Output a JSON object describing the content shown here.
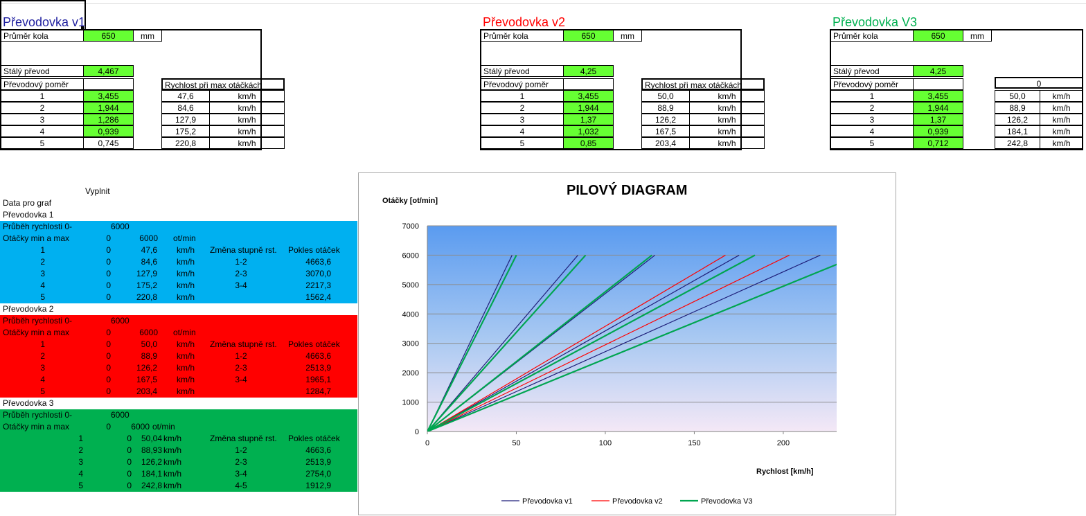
{
  "colors": {
    "v1": "#1f1f7a",
    "v2": "#ff0000",
    "v3": "#00a550",
    "input_cell": "#66ff33",
    "band_v1": "#00b0f0",
    "band_v2": "#ff0000",
    "band_v3": "#00b050"
  },
  "gearboxes": [
    {
      "title": "Převodovka v1",
      "title_color": "#1f1f9f",
      "wheel_label": "Průměr kola",
      "wheel_value": "650",
      "wheel_unit": "mm",
      "final_label": "Stálý převod",
      "final_value": "4,467",
      "ratio_label": "Převodový poměr",
      "speed_header": "Rychlost při max otáčkách",
      "rows": [
        {
          "gear": "1",
          "ratio": "3,455",
          "speed": "47,6",
          "unit": "km/h"
        },
        {
          "gear": "2",
          "ratio": "1,944",
          "speed": "84,6",
          "unit": "km/h"
        },
        {
          "gear": "3",
          "ratio": "1,286",
          "speed": "127,9",
          "unit": "km/h"
        },
        {
          "gear": "4",
          "ratio": "0,939",
          "speed": "175,2",
          "unit": "km/h"
        },
        {
          "gear": "5",
          "ratio": "0,745",
          "speed": "220,8",
          "unit": "km/h"
        }
      ]
    },
    {
      "title": "Převodovka v2",
      "title_color": "#ff0000",
      "wheel_label": "Průměr kola",
      "wheel_value": "650",
      "wheel_unit": "mm",
      "final_label": "Stálý převod",
      "final_value": "4,25",
      "ratio_label": "Převodový poměr",
      "speed_header": "Rychlost při max otáčkách",
      "rows": [
        {
          "gear": "1",
          "ratio": "3,455",
          "speed": "50,0",
          "unit": "km/h"
        },
        {
          "gear": "2",
          "ratio": "1,944",
          "speed": "88,9",
          "unit": "km/h"
        },
        {
          "gear": "3",
          "ratio": "1,37",
          "speed": "126,2",
          "unit": "km/h"
        },
        {
          "gear": "4",
          "ratio": "1,032",
          "speed": "167,5",
          "unit": "km/h"
        },
        {
          "gear": "5",
          "ratio": "0,85",
          "speed": "203,4",
          "unit": "km/h"
        }
      ]
    },
    {
      "title": "Převodovka V3",
      "title_color": "#00b050",
      "wheel_label": "Průměr kola",
      "wheel_value": "650",
      "wheel_unit": "mm",
      "final_label": "Stálý převod",
      "final_value": "4,25",
      "ratio_label": "Převodový poměr",
      "speed_header": "0",
      "rows": [
        {
          "gear": "1",
          "ratio": "3,455",
          "speed": "50,0",
          "unit": "km/h"
        },
        {
          "gear": "2",
          "ratio": "1,944",
          "speed": "88,9",
          "unit": "km/h"
        },
        {
          "gear": "3",
          "ratio": "1,37",
          "speed": "126,2",
          "unit": "km/h"
        },
        {
          "gear": "4",
          "ratio": "0,939",
          "speed": "184,1",
          "unit": "km/h"
        },
        {
          "gear": "5",
          "ratio": "0,712",
          "speed": "242,8",
          "unit": "km/h"
        }
      ]
    }
  ],
  "graph_data": {
    "fill_label": "Vyplnit",
    "data_label": "Data pro graf",
    "blocks": [
      {
        "name": "Převodovka 1",
        "speed_label": "Průběh rychlosti 0-",
        "speed_max": "6000",
        "rpm_label": "Otáčky min a max",
        "rpm_min": "0",
        "rpm_max": "6000",
        "rpm_unit": "ot/min",
        "change_header": "Změna stupně rst.",
        "drop_header": "Pokles otáček",
        "rows": [
          {
            "gear": "1",
            "min": "0",
            "speed": "47,6",
            "unit": "km/h",
            "change": "1-2",
            "drop": ""
          },
          {
            "gear": "2",
            "min": "0",
            "speed": "84,6",
            "unit": "km/h",
            "change": "2-3",
            "drop": "4663,6"
          },
          {
            "gear": "3",
            "min": "0",
            "speed": "127,9",
            "unit": "km/h",
            "change": "3-4",
            "drop": "3070,0"
          },
          {
            "gear": "4",
            "min": "0",
            "speed": "175,2",
            "unit": "km/h",
            "change": "",
            "drop": "2217,3"
          },
          {
            "gear": "5",
            "min": "0",
            "speed": "220,8",
            "unit": "km/h",
            "change": "",
            "drop": "1562,4"
          }
        ]
      },
      {
        "name": "Převodovka 2",
        "speed_label": "Průběh rychlosti 0-",
        "speed_max": "6000",
        "rpm_label": "Otáčky min a max",
        "rpm_min": "0",
        "rpm_max": "6000",
        "rpm_unit": "ot/min",
        "change_header": "Změna stupně rst.",
        "drop_header": "Pokles otáček",
        "rows": [
          {
            "gear": "1",
            "min": "0",
            "speed": "50,0",
            "unit": "km/h",
            "change": "",
            "drop": ""
          },
          {
            "gear": "2",
            "min": "0",
            "speed": "88,9",
            "unit": "km/h",
            "change": "1-2",
            "drop": "4663,6"
          },
          {
            "gear": "3",
            "min": "0",
            "speed": "126,2",
            "unit": "km/h",
            "change": "2-3",
            "drop": "2513,9"
          },
          {
            "gear": "4",
            "min": "0",
            "speed": "167,5",
            "unit": "km/h",
            "change": "3-4",
            "drop": "1965,1"
          },
          {
            "gear": "5",
            "min": "0",
            "speed": "203,4",
            "unit": "km/h",
            "change": "",
            "drop": "1284,7"
          }
        ]
      },
      {
        "name": "Převodovka 3",
        "speed_label": "Průběh rychlosti 0-",
        "speed_max": "6000",
        "rpm_label": "Otáčky min a max",
        "rpm_min": "0",
        "rpm_max": "6000",
        "rpm_unit": "ot/min",
        "change_header": "Změna stupně rst.",
        "drop_header": "Pokles otáček",
        "rows": [
          {
            "gear": "1",
            "min": "0",
            "speed": "50,04",
            "unit": "km/h",
            "change": "",
            "drop": ""
          },
          {
            "gear": "2",
            "min": "0",
            "speed": "88,93",
            "unit": "km/h",
            "change": "1-2",
            "drop": "4663,6"
          },
          {
            "gear": "3",
            "min": "0",
            "speed": "126,2",
            "unit": "km/h",
            "change": "2-3",
            "drop": "2513,9"
          },
          {
            "gear": "4",
            "min": "0",
            "speed": "184,1",
            "unit": "km/h",
            "change": "3-4",
            "drop": "2754,0"
          },
          {
            "gear": "5",
            "min": "0",
            "speed": "242,8",
            "unit": "km/h",
            "change": "4-5",
            "drop": "1912,9"
          }
        ]
      }
    ]
  },
  "chart_data": {
    "type": "line",
    "title": "PILOVÝ DIAGRAM",
    "xlabel": "Rychlost  [km/h]",
    "ylabel": "Otáčky  [ot/min]",
    "xlim": [
      0,
      230
    ],
    "ylim": [
      0,
      7000
    ],
    "xticks": [
      "0",
      "50",
      "100",
      "150",
      "200"
    ],
    "yticks": [
      "0",
      "1000",
      "2000",
      "3000",
      "4000",
      "5000",
      "6000",
      "7000"
    ],
    "grid": true,
    "legend_position": "bottom",
    "series": [
      {
        "name": "Převodovka v1",
        "color": "#1f1f7a",
        "lines": [
          [
            0,
            0,
            47.6,
            6000
          ],
          [
            0,
            0,
            84.6,
            6000
          ],
          [
            0,
            0,
            127.9,
            6000
          ],
          [
            0,
            0,
            175.2,
            6000
          ],
          [
            0,
            0,
            220.8,
            6000
          ]
        ]
      },
      {
        "name": "Převodovka v2",
        "color": "#ff0000",
        "lines": [
          [
            0,
            0,
            50.0,
            6000
          ],
          [
            0,
            0,
            88.9,
            6000
          ],
          [
            0,
            0,
            126.2,
            6000
          ],
          [
            0,
            0,
            167.5,
            6000
          ],
          [
            0,
            0,
            203.4,
            6000
          ]
        ]
      },
      {
        "name": "Převodovka V3",
        "color": "#00a550",
        "lines": [
          [
            0,
            0,
            50.04,
            6000
          ],
          [
            0,
            0,
            88.93,
            6000
          ],
          [
            0,
            0,
            126.2,
            6000
          ],
          [
            0,
            0,
            184.1,
            6000
          ],
          [
            0,
            0,
            242.8,
            6000
          ]
        ]
      }
    ]
  }
}
